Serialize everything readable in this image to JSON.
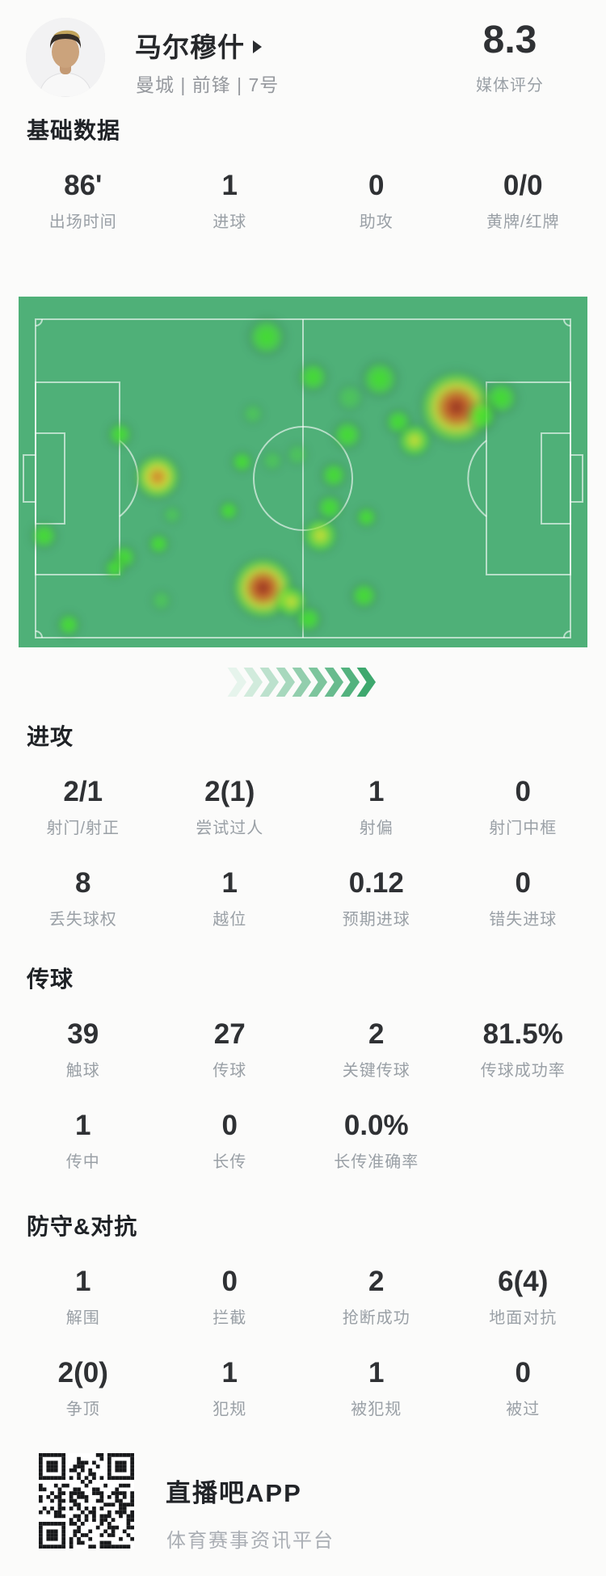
{
  "header": {
    "player_name": "马尔穆什",
    "team_position_number": "曼城 | 前锋 | 7号",
    "rating_value": "8.3",
    "rating_label": "媒体评分"
  },
  "sections": {
    "basic": {
      "title": "基础数据",
      "stats": [
        {
          "value": "86'",
          "label": "出场时间"
        },
        {
          "value": "1",
          "label": "进球"
        },
        {
          "value": "0",
          "label": "助攻"
        },
        {
          "value": "0/0",
          "label": "黄牌/红牌"
        }
      ]
    },
    "attack": {
      "title": "进攻",
      "stats": [
        {
          "value": "2/1",
          "label": "射门/射正"
        },
        {
          "value": "2(1)",
          "label": "尝试过人"
        },
        {
          "value": "1",
          "label": "射偏"
        },
        {
          "value": "0",
          "label": "射门中框"
        },
        {
          "value": "8",
          "label": "丢失球权"
        },
        {
          "value": "1",
          "label": "越位"
        },
        {
          "value": "0.12",
          "label": "预期进球"
        },
        {
          "value": "0",
          "label": "错失进球"
        }
      ]
    },
    "passing": {
      "title": "传球",
      "stats": [
        {
          "value": "39",
          "label": "触球"
        },
        {
          "value": "27",
          "label": "传球"
        },
        {
          "value": "2",
          "label": "关键传球"
        },
        {
          "value": "81.5%",
          "label": "传球成功率"
        },
        {
          "value": "1",
          "label": "传中"
        },
        {
          "value": "0",
          "label": "长传"
        },
        {
          "value": "0.0%",
          "label": "长传准确率"
        }
      ]
    },
    "defense": {
      "title": "防守&对抗",
      "stats": [
        {
          "value": "1",
          "label": "解围"
        },
        {
          "value": "0",
          "label": "拦截"
        },
        {
          "value": "2",
          "label": "抢断成功"
        },
        {
          "value": "6(4)",
          "label": "地面对抗"
        },
        {
          "value": "2(0)",
          "label": "争顶"
        },
        {
          "value": "1",
          "label": "犯规"
        },
        {
          "value": "1",
          "label": "被犯规"
        },
        {
          "value": "0",
          "label": "被过"
        }
      ]
    }
  },
  "footer": {
    "app_name": "直播吧APP",
    "app_tagline": "体育赛事资讯平台"
  },
  "chart_data": {
    "type": "heatmap",
    "title": "player-position-heatmap",
    "pitch": {
      "base_color": "#4fb078",
      "line_color": "rgba(255,255,255,0.6)",
      "orientation": "landscape",
      "attack_direction": "left-to-right"
    },
    "intensity_colors": {
      "low": "#4ade32",
      "mid": "#d8e032",
      "high": "#db7828",
      "peak": "#962c1e"
    },
    "spots": [
      {
        "x": 43.6,
        "y": 11.5,
        "r": 24,
        "level": "g1"
      },
      {
        "x": 51.8,
        "y": 23.0,
        "r": 19,
        "level": "g1"
      },
      {
        "x": 63.5,
        "y": 23.5,
        "r": 23,
        "level": "g1"
      },
      {
        "x": 58.2,
        "y": 28.8,
        "r": 17,
        "level": "g0"
      },
      {
        "x": 77.0,
        "y": 31.5,
        "r": 40,
        "level": "r"
      },
      {
        "x": 84.8,
        "y": 29.0,
        "r": 21,
        "level": "g1"
      },
      {
        "x": 81.5,
        "y": 34.0,
        "r": 19,
        "level": "g1"
      },
      {
        "x": 66.8,
        "y": 35.7,
        "r": 17,
        "level": "g1"
      },
      {
        "x": 69.6,
        "y": 41.0,
        "r": 20,
        "level": "y"
      },
      {
        "x": 17.8,
        "y": 39.2,
        "r": 16,
        "level": "g1"
      },
      {
        "x": 4.5,
        "y": 68.2,
        "r": 17,
        "level": "g1"
      },
      {
        "x": 24.4,
        "y": 51.4,
        "r": 27,
        "level": "o"
      },
      {
        "x": 41.2,
        "y": 33.4,
        "r": 13,
        "level": "g0"
      },
      {
        "x": 39.3,
        "y": 47.2,
        "r": 14,
        "level": "g1"
      },
      {
        "x": 44.6,
        "y": 46.8,
        "r": 13,
        "level": "g0"
      },
      {
        "x": 49.0,
        "y": 45.0,
        "r": 14,
        "level": "g0"
      },
      {
        "x": 24.7,
        "y": 70.5,
        "r": 14,
        "level": "g1"
      },
      {
        "x": 18.5,
        "y": 74.4,
        "r": 16,
        "level": "g1"
      },
      {
        "x": 16.9,
        "y": 77.4,
        "r": 14,
        "level": "g1"
      },
      {
        "x": 27.0,
        "y": 62.2,
        "r": 12,
        "level": "g0"
      },
      {
        "x": 36.9,
        "y": 61.1,
        "r": 13,
        "level": "g1"
      },
      {
        "x": 57.8,
        "y": 39.4,
        "r": 19,
        "level": "g1"
      },
      {
        "x": 55.4,
        "y": 50.9,
        "r": 17,
        "level": "g1"
      },
      {
        "x": 54.7,
        "y": 60.1,
        "r": 17,
        "level": "g1"
      },
      {
        "x": 53.0,
        "y": 68.0,
        "r": 21,
        "level": "y"
      },
      {
        "x": 43.0,
        "y": 83.0,
        "r": 34,
        "level": "r"
      },
      {
        "x": 47.9,
        "y": 87.0,
        "r": 19,
        "level": "y"
      },
      {
        "x": 51.0,
        "y": 92.0,
        "r": 17,
        "level": "g1"
      },
      {
        "x": 61.1,
        "y": 62.9,
        "r": 14,
        "level": "g1"
      },
      {
        "x": 60.7,
        "y": 85.3,
        "r": 17,
        "level": "g1"
      },
      {
        "x": 8.8,
        "y": 93.5,
        "r": 15,
        "level": "g1"
      },
      {
        "x": 25.1,
        "y": 86.6,
        "r": 13,
        "level": "g0"
      }
    ],
    "direction_arrows": {
      "count": 9,
      "color_from": "#e6f4ec",
      "color_to": "#3ea86e"
    }
  }
}
